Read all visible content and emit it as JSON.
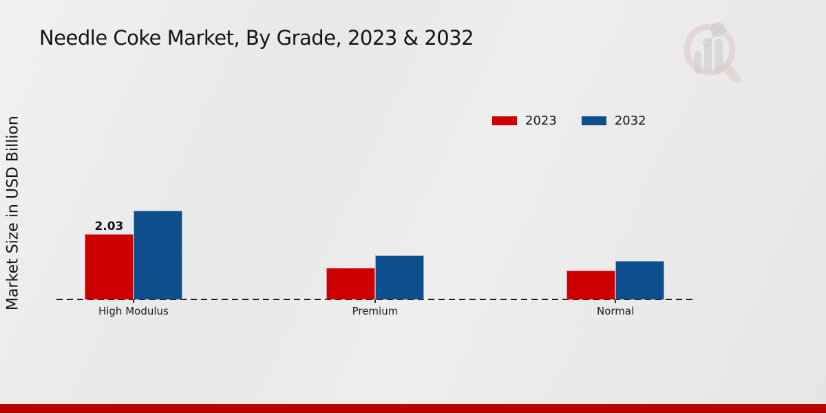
{
  "header": {
    "title": "Needle Coke Market, By Grade, 2023 & 2032"
  },
  "axes": {
    "y_label": "Market Size in USD Billion"
  },
  "chart_data": {
    "type": "bar",
    "title": "Needle Coke Market, By Grade, 2023 & 2032",
    "xlabel": "",
    "ylabel": "Market Size in USD Billion",
    "categories": [
      "High Modulus",
      "Premium",
      "Normal"
    ],
    "series": [
      {
        "name": "2023",
        "color": "#cc0000",
        "values": [
          2.03,
          0.98,
          0.9
        ],
        "value_labels": [
          "2.03",
          "",
          ""
        ]
      },
      {
        "name": "2032",
        "color": "#0d4e8c",
        "values": [
          2.76,
          1.37,
          1.2
        ],
        "value_labels": [
          "",
          "",
          ""
        ]
      }
    ],
    "ylim": [
      0,
      3
    ],
    "grid": false,
    "legend_position": "top-right",
    "baseline_style": "dashed"
  },
  "footer": {
    "bar_color": "#b90404"
  },
  "watermark": {
    "icon": "magnifier-bar-chart-logo",
    "ring_color": "#d9a8a8",
    "bars_color": "#b3b3b3"
  }
}
